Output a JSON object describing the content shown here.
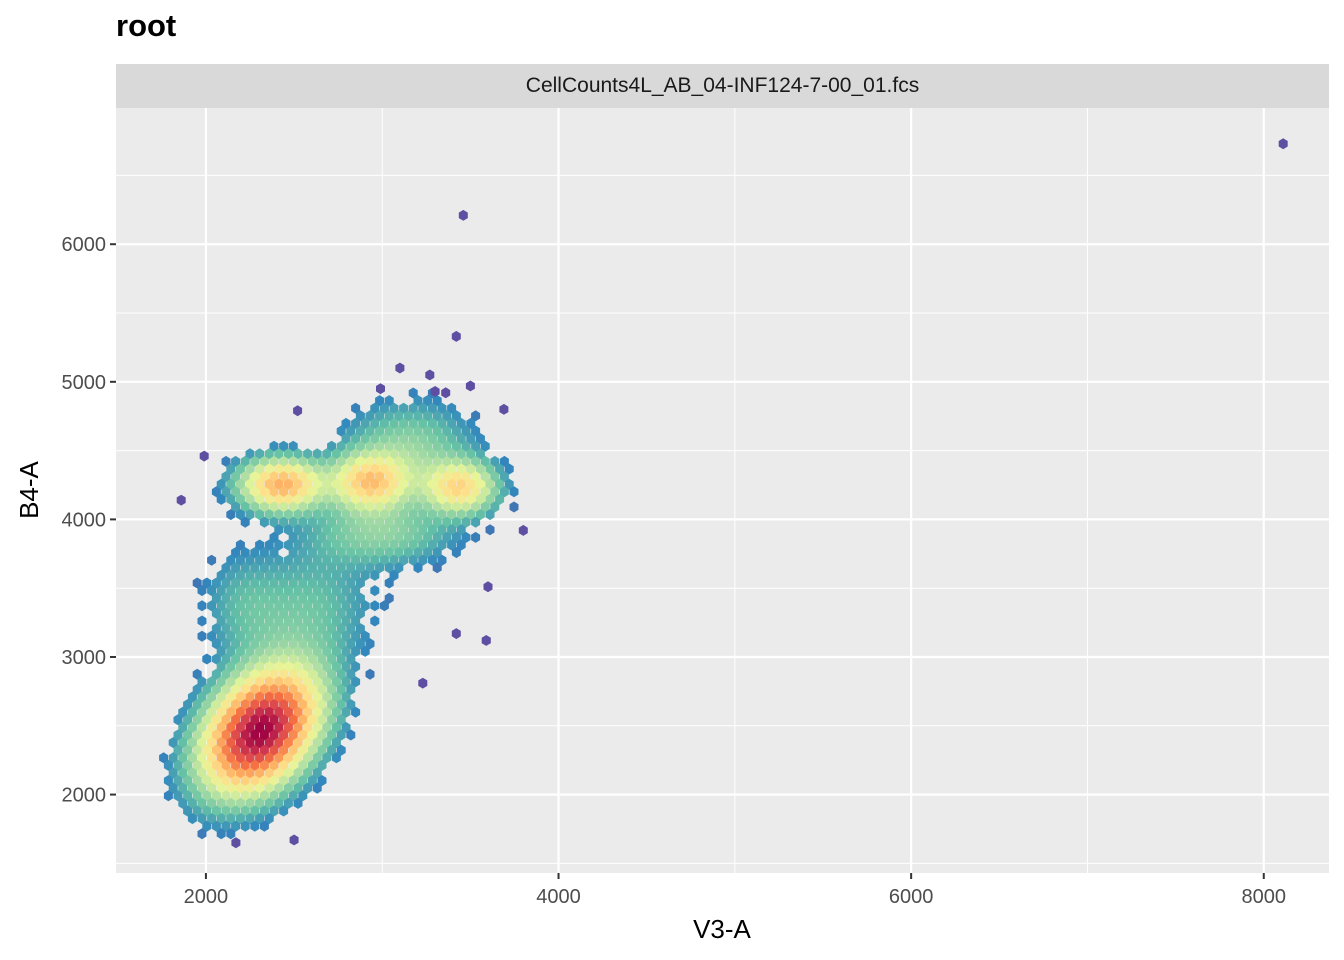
{
  "chart_data": {
    "type": "heatmap",
    "subtype": "hexbin",
    "title": "root",
    "facet_label": "CellCounts4L_AB_04-INF124-7-00_01.fcs",
    "xlabel": "V3-A",
    "ylabel": "B4-A",
    "xlim": [
      1490,
      8370
    ],
    "ylim": [
      1430,
      6990
    ],
    "x_ticks": [
      2000,
      4000,
      6000,
      8000
    ],
    "y_ticks": [
      2000,
      3000,
      4000,
      5000,
      6000
    ],
    "grid": true,
    "legend": "none",
    "colors": {
      "panel_background": "#ebebeb",
      "grid": "#ffffff",
      "strip_background": "#d9d9d9",
      "palette": [
        "#5e4fa2",
        "#3288bd",
        "#66c2a5",
        "#abdda4",
        "#e6f598",
        "#fee08b",
        "#fdae61",
        "#f46d43",
        "#d53e4f",
        "#9e0142"
      ]
    },
    "density_clusters": [
      {
        "x": 2310,
        "y": 2460,
        "sx": 200,
        "sy": 270,
        "rho": 0.35,
        "peak": 1.0
      },
      {
        "x": 2430,
        "y": 4250,
        "sx": 150,
        "sy": 120,
        "rho": 0.0,
        "peak": 0.5
      },
      {
        "x": 2930,
        "y": 4270,
        "sx": 140,
        "sy": 130,
        "rho": 0.0,
        "peak": 0.42
      },
      {
        "x": 3440,
        "y": 4230,
        "sx": 130,
        "sy": 120,
        "rho": 0.0,
        "peak": 0.38
      },
      {
        "x": 3150,
        "y": 4500,
        "sx": 230,
        "sy": 220,
        "rho": 0.0,
        "peak": 0.13
      },
      {
        "x": 3000,
        "y": 3900,
        "sx": 260,
        "sy": 150,
        "rho": 0.0,
        "peak": 0.12
      },
      {
        "x": 2550,
        "y": 3300,
        "sx": 260,
        "sy": 330,
        "rho": 0.2,
        "peak": 0.09
      },
      {
        "x": 2200,
        "y": 3400,
        "sx": 150,
        "sy": 250,
        "rho": 0.0,
        "peak": 0.05
      }
    ],
    "outlier_points": [
      [
        8110,
        6730
      ],
      [
        3460,
        6210
      ],
      [
        3420,
        5330
      ],
      [
        3500,
        4970
      ],
      [
        3300,
        4930
      ],
      [
        3800,
        3920
      ],
      [
        3600,
        3510
      ],
      [
        3420,
        3170
      ],
      [
        3590,
        3120
      ],
      [
        3230,
        2810
      ],
      [
        1990,
        4460
      ],
      [
        1860,
        4140
      ],
      [
        2520,
        4790
      ],
      [
        2500,
        1670
      ],
      [
        2170,
        1650
      ],
      [
        3100,
        5100
      ],
      [
        3270,
        5050
      ],
      [
        3360,
        4920
      ],
      [
        2990,
        4950
      ],
      [
        3690,
        4800
      ]
    ]
  }
}
